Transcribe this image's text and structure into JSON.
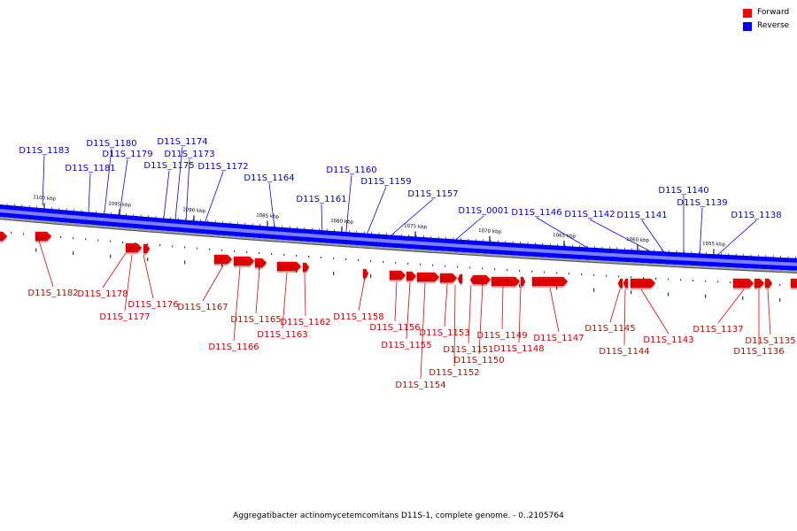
{
  "legend": [
    {
      "label": "Forward",
      "color": "#ff0000"
    },
    {
      "label": "Reverse",
      "color": "#0000ff"
    }
  ],
  "caption": "Aggregatibacter actinomycetemcomitans D11S-1, complete genome. - 0..2105764",
  "colors": {
    "backbone_blue": "#0000ff",
    "backbone_light": "#8080ff",
    "gene_red": "#ff0000",
    "reverse_label": "#0000cc",
    "forward_label": "#cc0000"
  },
  "scale_labels": [
    {
      "kbp": 1100,
      "label": "1100 kbp"
    },
    {
      "kbp": 1095,
      "label": "1095 kbp"
    },
    {
      "kbp": 1090,
      "label": "1090 kbp"
    },
    {
      "kbp": 1085,
      "label": "1085 kbp"
    },
    {
      "kbp": 1080,
      "label": "1080 kbp"
    },
    {
      "kbp": 1075,
      "label": "1075 kbp"
    },
    {
      "kbp": 1070,
      "label": "1070 kbp"
    },
    {
      "kbp": 1065,
      "label": "1065 kbp"
    },
    {
      "kbp": 1060,
      "label": "1060 kbp"
    },
    {
      "kbp": 1055,
      "label": "1055 kbp"
    }
  ],
  "reverse_genes": [
    "D11S_1183",
    "D11S_1181",
    "D11S_1180",
    "D11S_1179",
    "D11S_1175",
    "D11S_1174",
    "D11S_1173",
    "D11S_1172",
    "D11S_1164",
    "D11S_1161",
    "D11S_1160",
    "D11S_1159",
    "D11S_1157",
    "D11S_0001",
    "D11S_1146",
    "D11S_1142",
    "D11S_1141",
    "D11S_1140",
    "D11S_1139",
    "D11S_1138"
  ],
  "forward_genes": [
    "D11S_1182",
    "D11S_1178",
    "D11S_1177",
    "D11S_1176",
    "D11S_1167",
    "D11S_1166",
    "D11S_1165",
    "D11S_1163",
    "D11S_1162",
    "D11S_1158",
    "D11S_1156",
    "D11S_1155",
    "D11S_1154",
    "D11S_1153",
    "D11S_1152",
    "D11S_1151",
    "D11S_1150",
    "D11S_1149",
    "D11S_1148",
    "D11S_1147",
    "D11S_1145",
    "D11S_1144",
    "D11S_1143",
    "D11S_1137",
    "D11S_1136",
    "D11S_1135"
  ]
}
